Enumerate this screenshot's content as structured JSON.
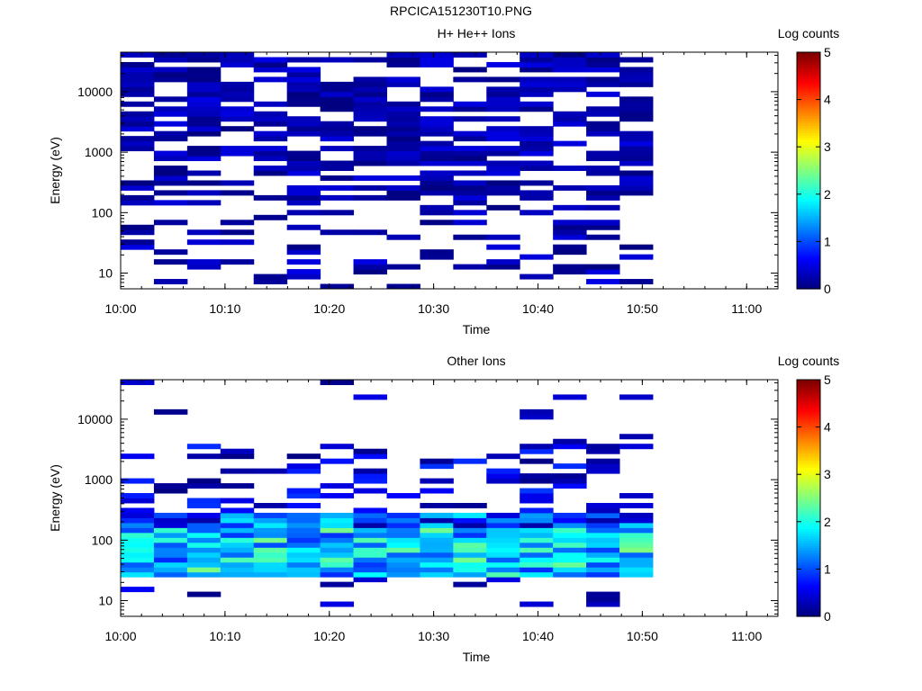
{
  "figure_title": "RPCICA151230T10.PNG",
  "colors": {
    "background": "#ffffff",
    "frame": "#000000"
  },
  "chart_data": [
    {
      "type": "heatmap",
      "title": "H+ He++ Ions",
      "xlabel": "Time",
      "ylabel": "Energy (eV)",
      "x_ticks": [
        "10:00",
        "10:10",
        "10:20",
        "10:30",
        "10:40",
        "10:50",
        "11:00"
      ],
      "xlim": [
        "10:00",
        "11:03"
      ],
      "y_scale": "log",
      "y_ticks": [
        10,
        100,
        1000,
        10000
      ],
      "y_tick_labels": [
        "10",
        "100",
        "1000",
        "10000"
      ],
      "ylim": [
        5.5,
        45000
      ],
      "colorbar": {
        "label": "Log counts",
        "range": [
          0,
          5
        ],
        "ticks": [
          "0",
          "1",
          "2",
          "3",
          "4",
          "5"
        ],
        "colormap": "jet"
      },
      "data_extent": {
        "start": "10:00",
        "end": "10:51"
      },
      "log_counts_typical": [
        0.0,
        0.5
      ],
      "note_values": "Sparse counts across the full energy range; almost all bins at log counts 0 to 0.5 (dark blue)."
    },
    {
      "type": "heatmap",
      "title": "Other Ions",
      "xlabel": "Time",
      "ylabel": "Energy (eV)",
      "x_ticks": [
        "10:00",
        "10:10",
        "10:20",
        "10:30",
        "10:40",
        "10:50",
        "11:00"
      ],
      "xlim": [
        "10:00",
        "11:03"
      ],
      "y_scale": "log",
      "y_ticks": [
        10,
        100,
        1000,
        10000
      ],
      "y_tick_labels": [
        "10",
        "100",
        "1000",
        "10000"
      ],
      "ylim": [
        5.5,
        45000
      ],
      "colorbar": {
        "label": "Log counts",
        "range": [
          0,
          5
        ],
        "ticks": [
          "0",
          "1",
          "2",
          "3",
          "4",
          "5"
        ],
        "colormap": "jet"
      },
      "data_extent": {
        "start": "10:00",
        "end": "10:51"
      },
      "peak_band_eV": [
        25,
        300
      ],
      "peak_log_counts": 2.5
    }
  ]
}
